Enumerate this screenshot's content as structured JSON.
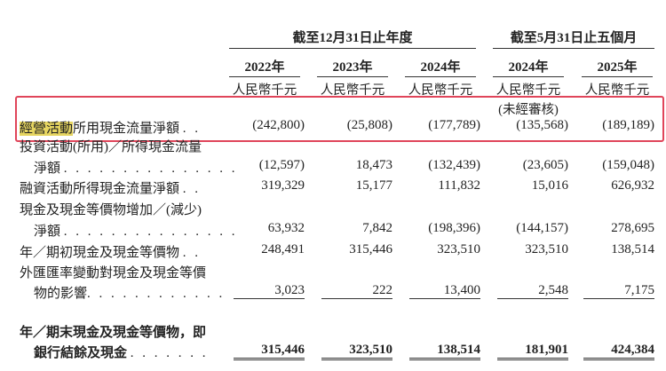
{
  "header": {
    "group1": "截至12月31日止年度",
    "group2": "截至5月31日止五個月",
    "years": [
      "2022年",
      "2023年",
      "2024年",
      "2024年",
      "2025年"
    ],
    "unit": "人民幣千元",
    "unaudited": "(未經審核)"
  },
  "rows": [
    {
      "label_highlight": "經營活動",
      "label_rest": "所用現金流量淨額",
      "dots": ". .",
      "values": [
        "(242,800)",
        "(25,808)",
        "(177,789)",
        "(135,568)",
        "(189,189)"
      ]
    },
    {
      "label": "投資活動(所用)／所得現金流量",
      "label2": "淨額",
      "dots": ". . . . . . . . . . . . . . .",
      "values": [
        "(12,597)",
        "18,473",
        "(132,439)",
        "(23,605)",
        "(159,048)"
      ]
    },
    {
      "label": "融資活動所得現金流量淨額",
      "dots": ". .",
      "values": [
        "319,329",
        "15,177",
        "111,832",
        "15,016",
        "626,932"
      ]
    },
    {
      "label": "現金及現金等價物增加／(減少)",
      "label2": "淨額",
      "dots": ". . . . . . . . . . . . . . .",
      "values": [
        "63,932",
        "7,842",
        "(198,396)",
        "(144,157)",
        "278,695"
      ]
    },
    {
      "label": "年／期初現金及現金等價物",
      "dots": ". .",
      "values": [
        "248,491",
        "315,446",
        "323,510",
        "323,510",
        "138,514"
      ]
    },
    {
      "label": "外匯匯率變動對現金及現金等價",
      "label2": "物的影響",
      "dots": ". . . . . . . . . . . .",
      "values": [
        "3,023",
        "222",
        "13,400",
        "2,548",
        "7,175"
      ]
    },
    {
      "label": "年／期末現金及現金等價物，即",
      "label2": "銀行結餘及現金",
      "dots": ". . . . . . .",
      "values": [
        "315,446",
        "323,510",
        "138,514",
        "181,901",
        "424,384"
      ]
    }
  ],
  "highlight_color": "#e0455a"
}
